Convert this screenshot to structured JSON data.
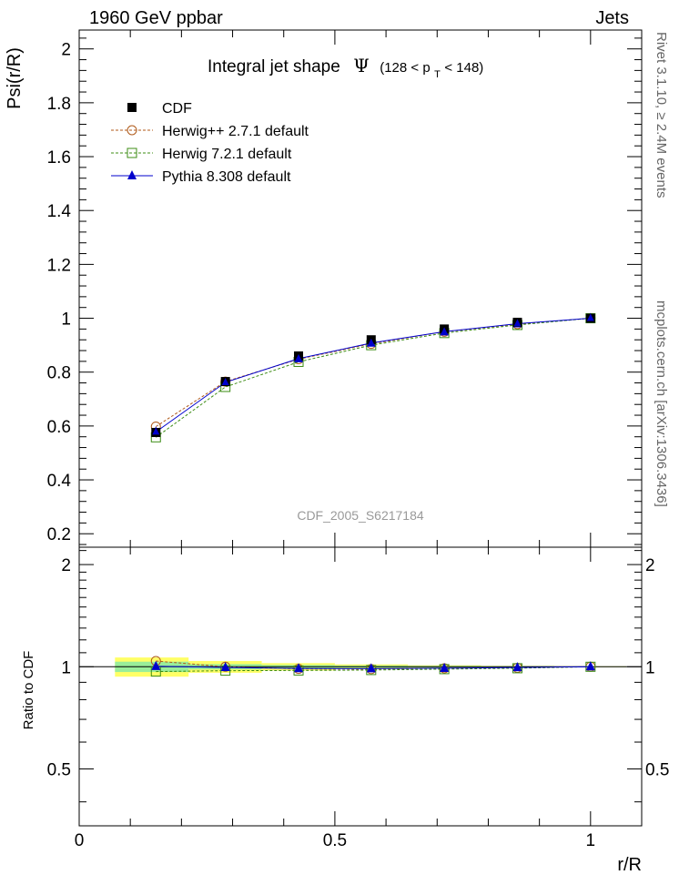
{
  "header": {
    "energy_label": "1960 GeV ppbar",
    "category_label": "Jets"
  },
  "side_labels": {
    "rivet": "Rivet 3.1.10, ≥ 2.4M events",
    "mcplots": "mcplots.cern.ch [arXiv:1306.3436]"
  },
  "watermark": "CDF_2005_S6217184",
  "chart_data": {
    "type": "line",
    "title": {
      "main": "Integral jet shape",
      "symbol": "Ψ",
      "range": "(128 < p",
      "sub": "T",
      "range_end": " < 148)"
    },
    "xlabel": "r/R",
    "ylabel": "Psi(r/R)",
    "ratio_ylabel": "Ratio to CDF",
    "xlim": [
      0,
      1.1
    ],
    "ylim": [
      0.15,
      2.07
    ],
    "ratio_ylim": [
      0.34,
      2.25
    ],
    "x_ticks": [
      "0",
      "0.5",
      "1"
    ],
    "y_ticks": [
      "0.2",
      "0.4",
      "0.6",
      "0.8",
      "1",
      "1.2",
      "1.4",
      "1.6",
      "1.8",
      "2"
    ],
    "ratio_ticks": [
      "0.5",
      "1",
      "2"
    ],
    "x": [
      0.15,
      0.286,
      0.429,
      0.571,
      0.714,
      0.857,
      1.0
    ],
    "data_band": {
      "x_edges": [
        0.07,
        0.214,
        0.357,
        0.5,
        0.643,
        0.786,
        0.929,
        1.07
      ],
      "stat_rel": [
        0.035,
        0.018,
        0.012,
        0.008,
        0.006,
        0.004,
        0.002
      ],
      "total_rel": [
        0.065,
        0.04,
        0.025,
        0.016,
        0.01,
        0.006,
        0.003
      ]
    },
    "series": [
      {
        "name": "CDF",
        "marker": "square-filled",
        "color": "#000000",
        "values": [
          0.576,
          0.765,
          0.86,
          0.92,
          0.96,
          0.985,
          1.0
        ],
        "errors": [
          0.012,
          0.01,
          0.008,
          0.006,
          0.005,
          0.003,
          0.0
        ]
      },
      {
        "name": "Herwig++ 2.7.1 default",
        "marker": "circle-open",
        "color": "#b05a1a",
        "dash": true,
        "values": [
          0.598,
          0.765,
          0.848,
          0.905,
          0.95,
          0.978,
          1.0
        ],
        "ratio": [
          1.04,
          1.0,
          0.986,
          0.984,
          0.99,
          0.993,
          1.0
        ]
      },
      {
        "name": "Herwig 7.2.1 default",
        "marker": "square-open",
        "color": "#3c8c14",
        "dash": true,
        "values": [
          0.558,
          0.745,
          0.838,
          0.9,
          0.945,
          0.975,
          1.0
        ],
        "ratio": [
          0.968,
          0.974,
          0.975,
          0.978,
          0.984,
          0.99,
          1.0
        ]
      },
      {
        "name": "Pythia 8.308 default",
        "marker": "triangle-filled",
        "color": "#0000cc",
        "dash": false,
        "values": [
          0.578,
          0.762,
          0.85,
          0.908,
          0.95,
          0.98,
          1.0
        ],
        "ratio": [
          1.003,
          0.996,
          0.988,
          0.987,
          0.99,
          0.995,
          1.0
        ]
      }
    ]
  }
}
